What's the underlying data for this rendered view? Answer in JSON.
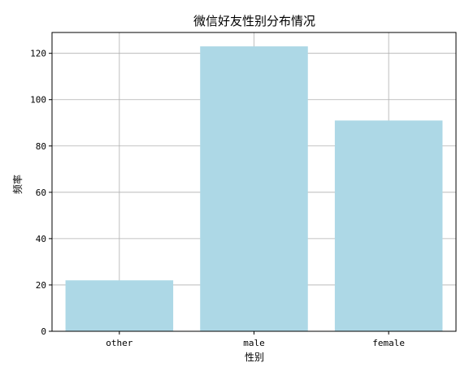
{
  "chart_data": {
    "type": "bar",
    "title": "微信好友性别分布情况",
    "xlabel": "性别",
    "ylabel": "频率",
    "categories": [
      "other",
      "male",
      "female"
    ],
    "values": [
      22,
      123,
      91
    ],
    "ylim": [
      0,
      129
    ],
    "yticks": [
      "0",
      "20",
      "40",
      "60",
      "80",
      "100",
      "120"
    ],
    "grid": true,
    "bar_color": "#add8e6",
    "grid_color": "#b0b0b0"
  }
}
